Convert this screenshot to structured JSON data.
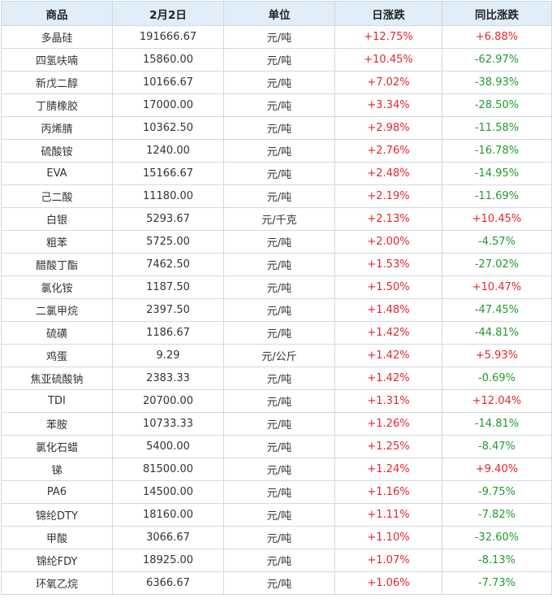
{
  "table": {
    "headers": [
      "商品",
      "2月2日",
      "单位",
      "日涨跌",
      "同比涨跌"
    ],
    "colors": {
      "up": "#e8242a",
      "down": "#229a2c",
      "header_bg": "#dfeef9"
    },
    "rows": [
      {
        "name": "多晶硅",
        "price": "191666.67",
        "unit": "元/吨",
        "daily": "+12.75%",
        "yoy": "+6.88%"
      },
      {
        "name": "四氢呋喃",
        "price": "15860.00",
        "unit": "元/吨",
        "daily": "+10.45%",
        "yoy": "-62.97%"
      },
      {
        "name": "新戊二醇",
        "price": "10166.67",
        "unit": "元/吨",
        "daily": "+7.02%",
        "yoy": "-38.93%"
      },
      {
        "name": "丁腈橡胶",
        "price": "17000.00",
        "unit": "元/吨",
        "daily": "+3.34%",
        "yoy": "-28.50%"
      },
      {
        "name": "丙烯腈",
        "price": "10362.50",
        "unit": "元/吨",
        "daily": "+2.98%",
        "yoy": "-11.58%"
      },
      {
        "name": "硫酸铵",
        "price": "1240.00",
        "unit": "元/吨",
        "daily": "+2.76%",
        "yoy": "-16.78%"
      },
      {
        "name": "EVA",
        "price": "15166.67",
        "unit": "元/吨",
        "daily": "+2.48%",
        "yoy": "-14.95%"
      },
      {
        "name": "己二酸",
        "price": "11180.00",
        "unit": "元/吨",
        "daily": "+2.19%",
        "yoy": "-11.69%"
      },
      {
        "name": "白银",
        "price": "5293.67",
        "unit": "元/千克",
        "daily": "+2.13%",
        "yoy": "+10.45%"
      },
      {
        "name": "粗苯",
        "price": "5725.00",
        "unit": "元/吨",
        "daily": "+2.00%",
        "yoy": "-4.57%"
      },
      {
        "name": "醋酸丁酯",
        "price": "7462.50",
        "unit": "元/吨",
        "daily": "+1.53%",
        "yoy": "-27.02%"
      },
      {
        "name": "氯化铵",
        "price": "1187.50",
        "unit": "元/吨",
        "daily": "+1.50%",
        "yoy": "+10.47%"
      },
      {
        "name": "二氯甲烷",
        "price": "2397.50",
        "unit": "元/吨",
        "daily": "+1.48%",
        "yoy": "-47.45%"
      },
      {
        "name": "硫磺",
        "price": "1186.67",
        "unit": "元/吨",
        "daily": "+1.42%",
        "yoy": "-44.81%"
      },
      {
        "name": "鸡蛋",
        "price": "9.29",
        "unit": "元/公斤",
        "daily": "+1.42%",
        "yoy": "+5.93%"
      },
      {
        "name": "焦亚硫酸钠",
        "price": "2383.33",
        "unit": "元/吨",
        "daily": "+1.42%",
        "yoy": "-0.69%"
      },
      {
        "name": "TDI",
        "price": "20700.00",
        "unit": "元/吨",
        "daily": "+1.31%",
        "yoy": "+12.04%"
      },
      {
        "name": "苯胺",
        "price": "10733.33",
        "unit": "元/吨",
        "daily": "+1.26%",
        "yoy": "-14.81%"
      },
      {
        "name": "氯化石蜡",
        "price": "5400.00",
        "unit": "元/吨",
        "daily": "+1.25%",
        "yoy": "-8.47%"
      },
      {
        "name": "锑",
        "price": "81500.00",
        "unit": "元/吨",
        "daily": "+1.24%",
        "yoy": "+9.40%"
      },
      {
        "name": "PA6",
        "price": "14500.00",
        "unit": "元/吨",
        "daily": "+1.16%",
        "yoy": "-9.75%"
      },
      {
        "name": "锦纶DTY",
        "price": "18160.00",
        "unit": "元/吨",
        "daily": "+1.11%",
        "yoy": "-7.82%"
      },
      {
        "name": "甲酸",
        "price": "3066.67",
        "unit": "元/吨",
        "daily": "+1.10%",
        "yoy": "-32.60%"
      },
      {
        "name": "锦纶FDY",
        "price": "18925.00",
        "unit": "元/吨",
        "daily": "+1.07%",
        "yoy": "-8.13%"
      },
      {
        "name": "环氧乙烷",
        "price": "6366.67",
        "unit": "元/吨",
        "daily": "+1.06%",
        "yoy": "-7.73%"
      }
    ]
  }
}
